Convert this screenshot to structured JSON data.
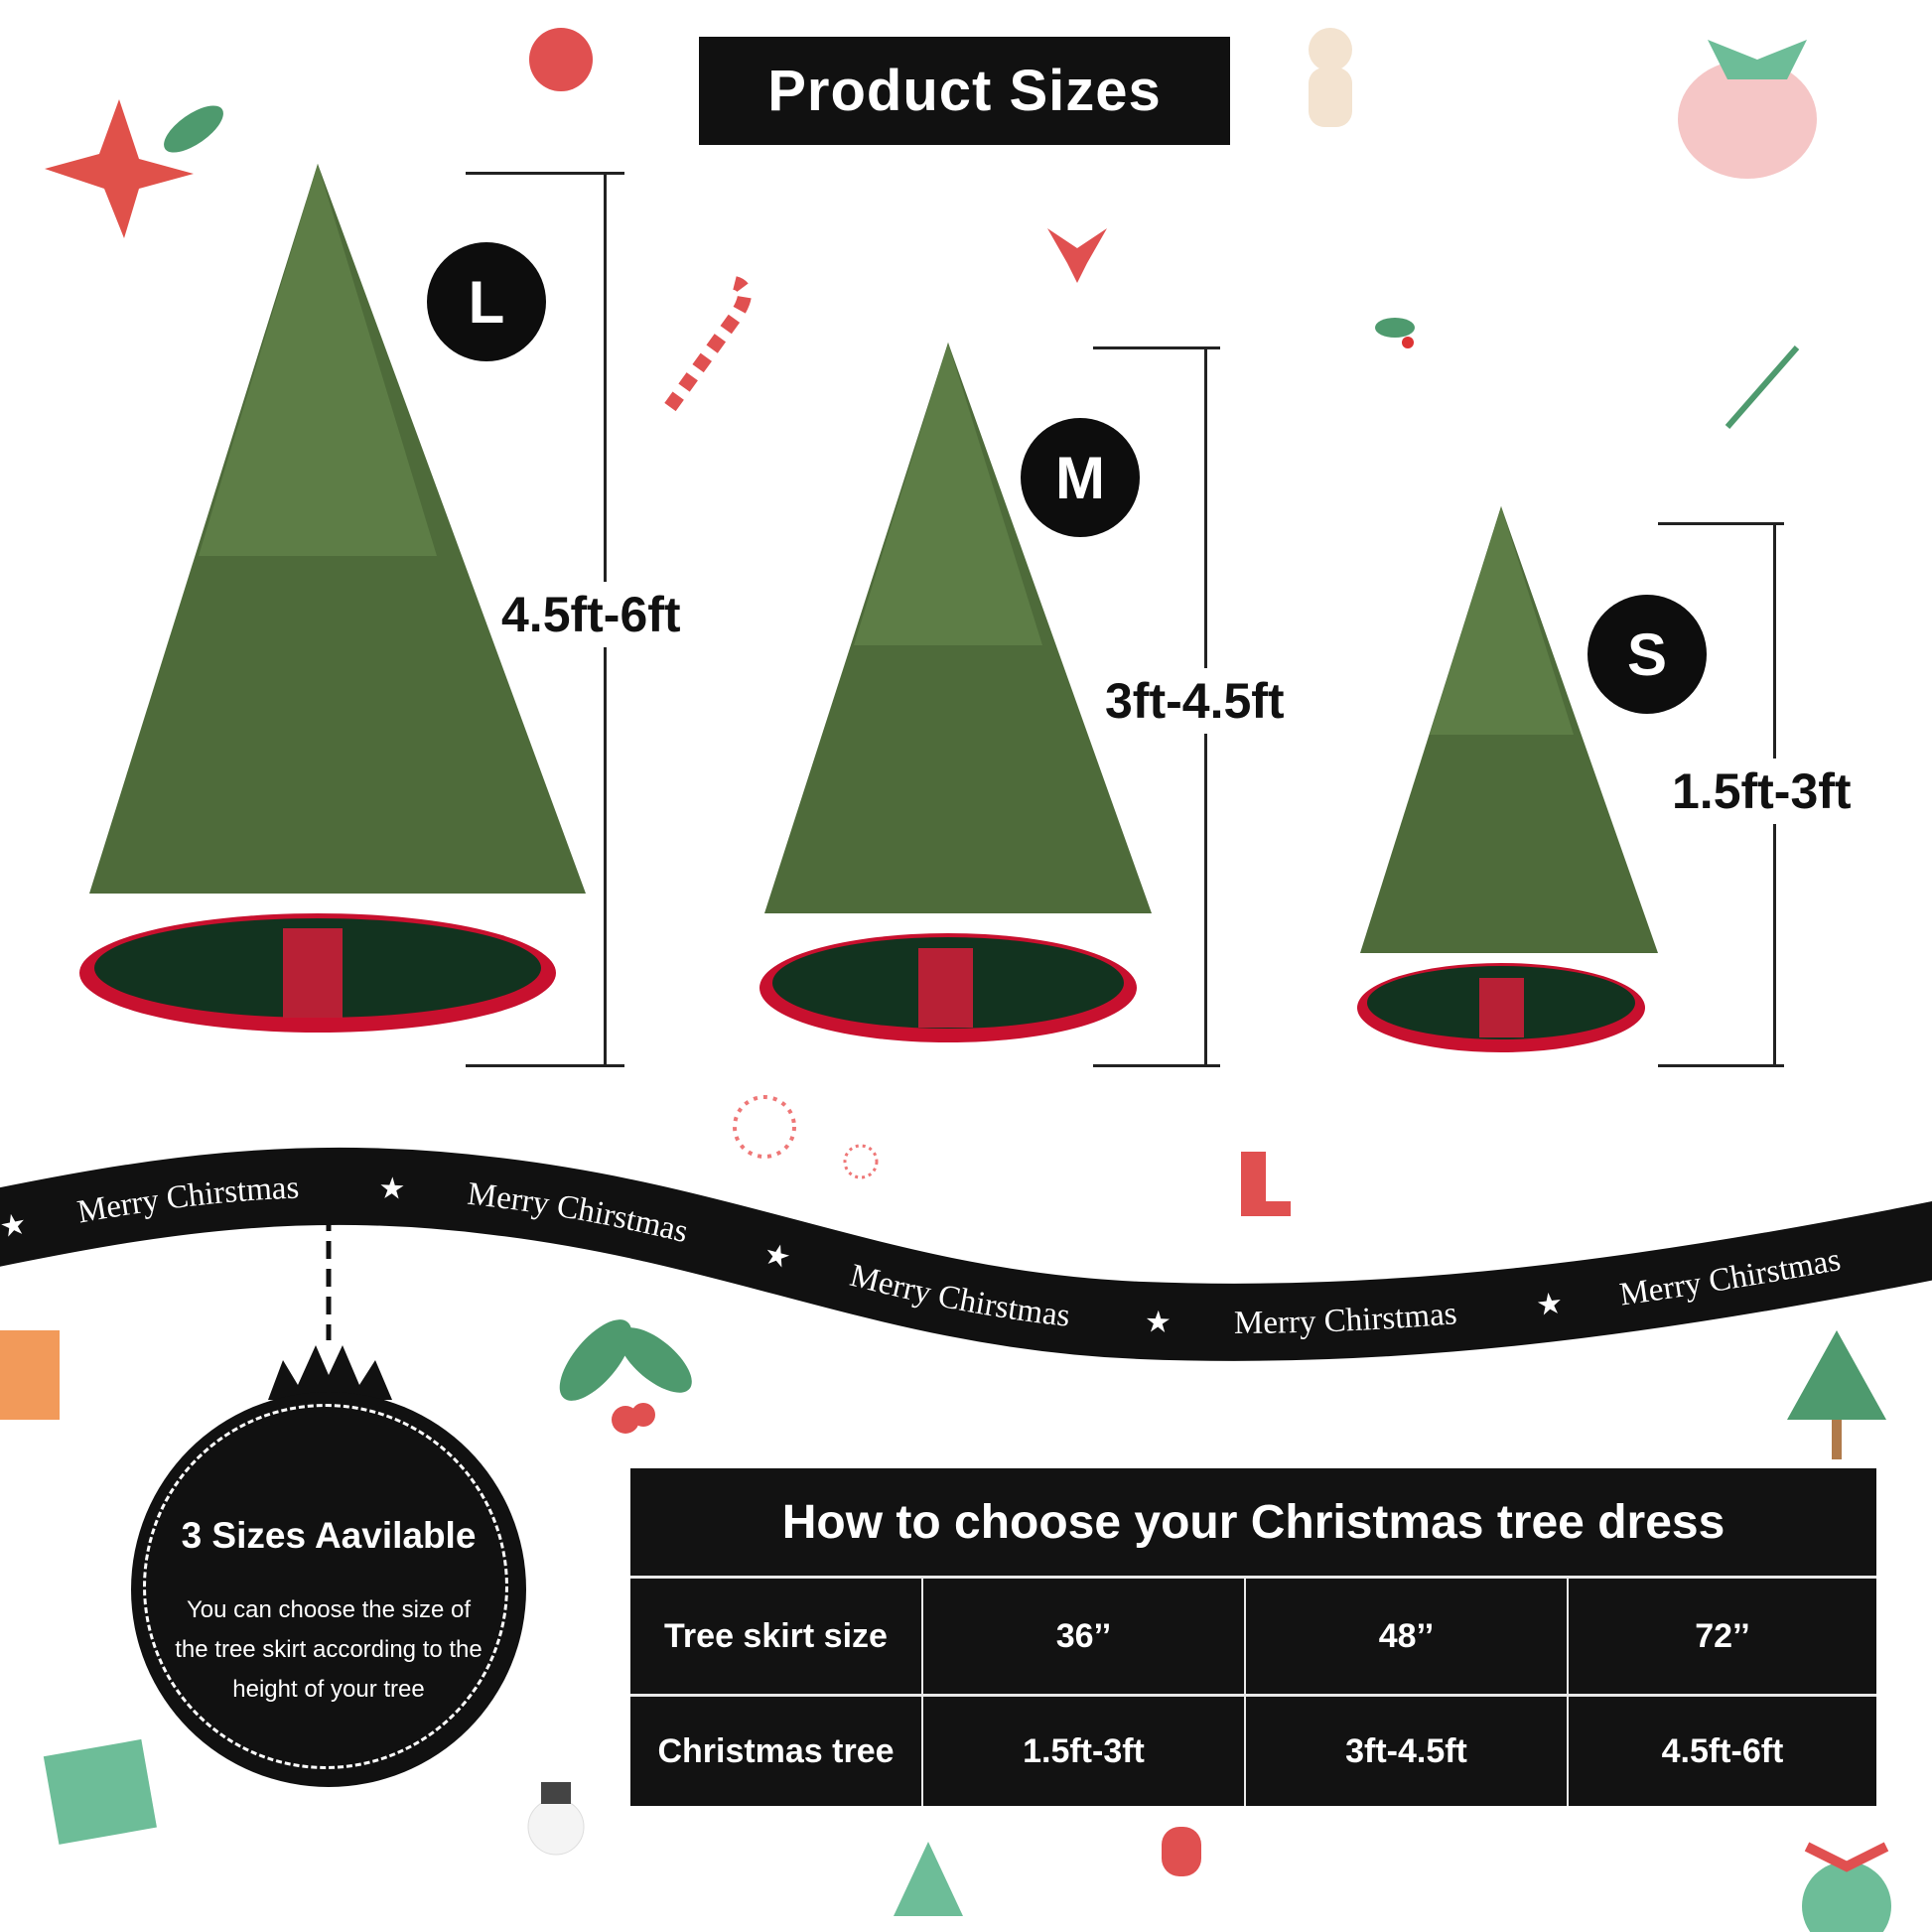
{
  "title": "Product Sizes",
  "sizes": [
    {
      "badge": "L",
      "height_range": "4.5ft-6ft"
    },
    {
      "badge": "M",
      "height_range": "3ft-4.5ft"
    },
    {
      "badge": "S",
      "height_range": "1.5ft-3ft"
    }
  ],
  "ribbon": {
    "text": [
      "Merry Chirstmas",
      "Merry Chirstmas",
      "Merry Chirstmas",
      "Merry Chirstmas",
      "Merry Chirstmas"
    ]
  },
  "ornament": {
    "title": "3 Sizes Aavilable",
    "body": "You can choose the size of the tree skirt according to the height of your tree"
  },
  "table": {
    "title": "How to choose your Christmas tree dress",
    "rows": [
      {
        "label": "Tree skirt size",
        "values": [
          "36’’",
          "48’’",
          "72’’"
        ]
      },
      {
        "label": "Christmas tree",
        "values": [
          "1.5ft-3ft",
          "3ft-4.5ft",
          "4.5ft-6ft"
        ]
      }
    ]
  },
  "colors": {
    "tree_green": "#4e6b3a",
    "skirt_red": "#c8102e",
    "skirt_green": "#12331f",
    "dark": "#111111"
  }
}
